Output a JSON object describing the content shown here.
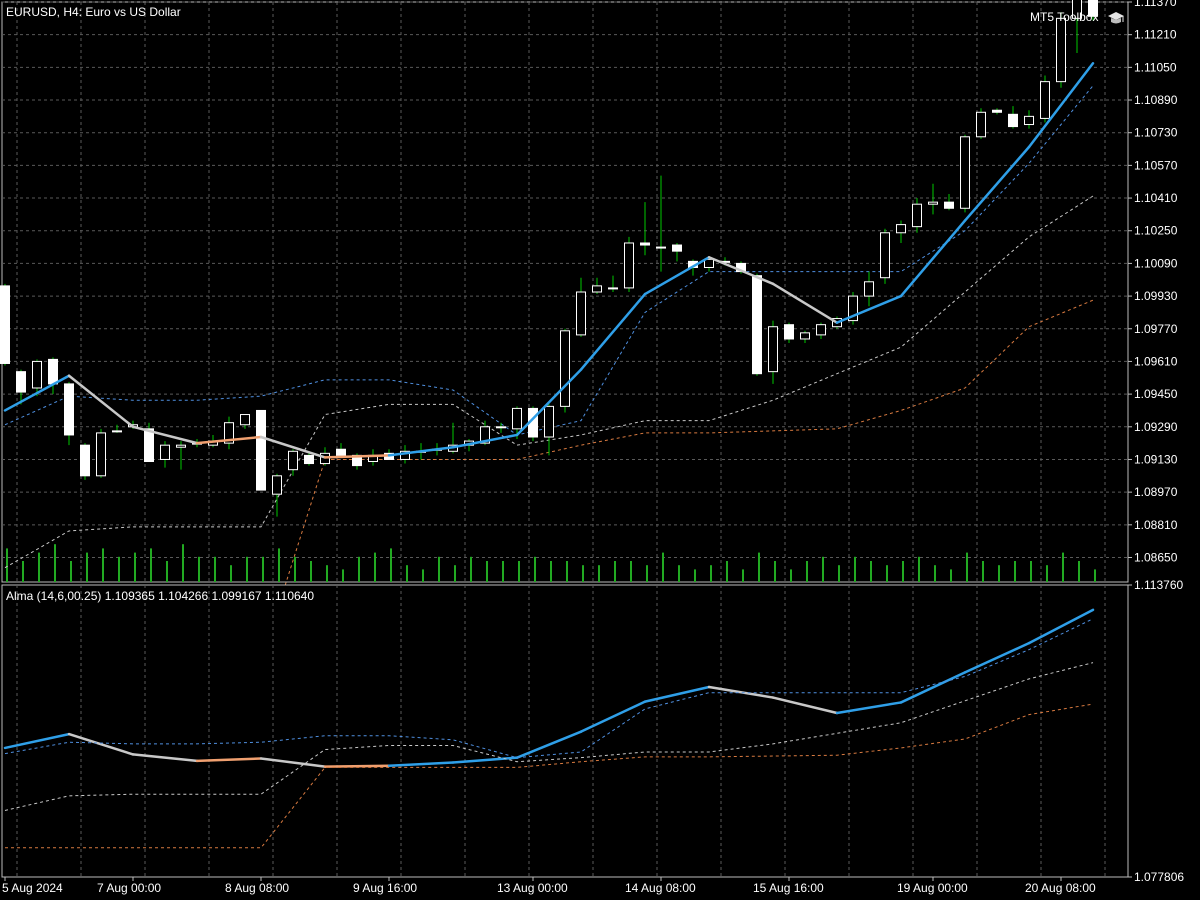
{
  "header": {
    "symbol_label": "EURUSD, H4:  Euro vs US Dollar",
    "toolbox_label": "MT5 Toolbox",
    "indicator_label": "Alma (14,6,00.25) 1.109365 1.104266 1.099167 1.110640"
  },
  "icons": {
    "toolbox": "graduation-cap-icon"
  },
  "colors": {
    "background": "#000000",
    "grid": "#5a5a5a",
    "candle_up_body": "#000000",
    "candle_down_body": "#ffffff",
    "candle_outline": "#ffffff",
    "wick": "#00c800",
    "volume": "#22aa22",
    "alma_up": "#2f9fe8",
    "alma_down": "#c8c8c8",
    "alma_flat": "#f0a070",
    "band_blue": "#4f8fdf",
    "band_white": "#c8c8c8",
    "band_orange": "#d87a40"
  },
  "chart_data": [
    {
      "type": "candlestick",
      "title": "EURUSD, H4:  Euro vs US Dollar",
      "ylim": [
        1.0853,
        1.1137
      ],
      "y_ticks": [
        "1.11370",
        "1.11210",
        "1.11050",
        "1.10890",
        "1.10730",
        "1.10570",
        "1.10410",
        "1.10250",
        "1.10090",
        "1.09930",
        "1.09770",
        "1.09610",
        "1.09450",
        "1.09290",
        "1.09130",
        "1.08970",
        "1.08810",
        "1.08650"
      ],
      "x_ticks": [
        "5 Aug 2024",
        "7 Aug 00:00",
        "8 Aug 08:00",
        "9 Aug 16:00",
        "13 Aug 00:00",
        "14 Aug 08:00",
        "15 Aug 16:00",
        "19 Aug 00:00",
        "20 Aug 08:00"
      ],
      "x_tick_bar_index": [
        0,
        8,
        16,
        24,
        33,
        41,
        49,
        58,
        66
      ],
      "candles": [
        [
          1.0998,
          1.0999,
          1.0959,
          1.096
        ],
        [
          1.0956,
          1.0957,
          1.094,
          1.0946
        ],
        [
          1.0948,
          1.0962,
          1.0944,
          1.0961
        ],
        [
          1.0962,
          1.0963,
          1.0945,
          1.095
        ],
        [
          1.095,
          1.0951,
          1.092,
          1.0925
        ],
        [
          1.092,
          1.0921,
          1.0903,
          1.0905
        ],
        [
          1.0905,
          1.0928,
          1.0904,
          1.0926
        ],
        [
          1.0927,
          1.093,
          1.0926,
          1.0927
        ],
        [
          1.0929,
          1.0932,
          1.0928,
          1.093
        ],
        [
          1.0928,
          1.0931,
          1.0912,
          1.0912
        ],
        [
          1.0913,
          1.0922,
          1.0909,
          1.092
        ],
        [
          1.0919,
          1.0922,
          1.0908,
          1.092
        ],
        [
          1.0921,
          1.0923,
          1.0919,
          1.0921
        ],
        [
          1.092,
          1.0925,
          1.0919,
          1.0922
        ],
        [
          1.0921,
          1.0934,
          1.0918,
          1.0931
        ],
        [
          1.093,
          1.0935,
          1.0928,
          1.0935
        ],
        [
          1.0937,
          1.0937,
          1.0898,
          1.0898
        ],
        [
          1.0896,
          1.0906,
          1.0885,
          1.0905
        ],
        [
          1.0908,
          1.0918,
          1.0905,
          1.0917
        ],
        [
          1.0915,
          1.0916,
          1.091,
          1.0911
        ],
        [
          1.0911,
          1.0919,
          1.091,
          1.0916
        ],
        [
          1.0918,
          1.0921,
          1.0915,
          1.0915
        ],
        [
          1.0915,
          1.0916,
          1.0908,
          1.091
        ],
        [
          1.0912,
          1.0918,
          1.091,
          1.0915
        ],
        [
          1.0916,
          1.0918,
          1.0913,
          1.0913
        ],
        [
          1.0913,
          1.092,
          1.0911,
          1.0917
        ],
        [
          1.0917,
          1.0921,
          1.0913,
          1.0917
        ],
        [
          1.0918,
          1.0921,
          1.0915,
          1.0918
        ],
        [
          1.0917,
          1.0931,
          1.0916,
          1.092
        ],
        [
          1.092,
          1.0923,
          1.0917,
          1.0922
        ],
        [
          1.0921,
          1.0932,
          1.092,
          1.0929
        ],
        [
          1.0929,
          1.0931,
          1.0926,
          1.0929
        ],
        [
          1.0928,
          1.0939,
          1.0923,
          1.0938
        ],
        [
          1.0938,
          1.0939,
          1.0922,
          1.0924
        ],
        [
          1.0924,
          1.094,
          1.0915,
          1.0939
        ],
        [
          1.0939,
          1.0977,
          1.0936,
          1.0976
        ],
        [
          1.0974,
          1.1002,
          1.0973,
          1.0995
        ],
        [
          1.0995,
          1.1002,
          1.0994,
          1.0998
        ],
        [
          1.0997,
          1.1003,
          1.0995,
          1.0997
        ],
        [
          1.0997,
          1.1022,
          1.0995,
          1.1019
        ],
        [
          1.1019,
          1.1039,
          1.1013,
          1.1018
        ],
        [
          1.1017,
          1.1052,
          1.1005,
          1.1017
        ],
        [
          1.1018,
          1.1019,
          1.101,
          1.1015
        ],
        [
          1.101,
          1.1011,
          1.1003,
          1.1007
        ],
        [
          1.1007,
          1.1012,
          1.1005,
          1.1011
        ],
        [
          1.101,
          1.1012,
          1.1008,
          1.101
        ],
        [
          1.1009,
          1.101,
          1.1004,
          1.1005
        ],
        [
          1.1003,
          1.1004,
          1.0954,
          1.0955
        ],
        [
          1.0956,
          1.0981,
          1.095,
          1.0978
        ],
        [
          1.0979,
          1.098,
          1.097,
          1.0972
        ],
        [
          1.0972,
          1.0976,
          1.097,
          1.0975
        ],
        [
          1.0974,
          1.098,
          1.0972,
          1.0979
        ],
        [
          1.0978,
          1.0983,
          1.0977,
          1.0982
        ],
        [
          1.0981,
          1.0995,
          1.0979,
          1.0993
        ],
        [
          1.0993,
          1.1005,
          1.0988,
          1.1
        ],
        [
          1.1002,
          1.1026,
          1.0999,
          1.1024
        ],
        [
          1.1024,
          1.103,
          1.1019,
          1.1028
        ],
        [
          1.1027,
          1.1041,
          1.1024,
          1.1038
        ],
        [
          1.1038,
          1.1048,
          1.1033,
          1.1039
        ],
        [
          1.1039,
          1.1043,
          1.1035,
          1.1036
        ],
        [
          1.1036,
          1.1072,
          1.1034,
          1.1071
        ],
        [
          1.1071,
          1.1085,
          1.107,
          1.1083
        ],
        [
          1.1084,
          1.1085,
          1.1082,
          1.1083
        ],
        [
          1.1082,
          1.1086,
          1.1075,
          1.1076
        ],
        [
          1.1077,
          1.1084,
          1.1075,
          1.1081
        ],
        [
          1.108,
          1.1101,
          1.1078,
          1.1098
        ],
        [
          1.1098,
          1.1132,
          1.1095,
          1.1129
        ],
        [
          1.1129,
          1.114,
          1.1112,
          1.1139
        ],
        [
          1.1139,
          1.1141,
          1.1128,
          1.113
        ]
      ],
      "volume_relative": [
        0.8,
        0.5,
        0.7,
        0.9,
        0.5,
        0.7,
        0.8,
        0.6,
        0.7,
        0.8,
        0.5,
        0.9,
        0.6,
        0.6,
        0.4,
        0.6,
        0.6,
        0.8,
        0.6,
        0.5,
        0.4,
        0.3,
        0.6,
        0.7,
        0.8,
        0.4,
        0.3,
        0.6,
        0.4,
        0.6,
        0.5,
        0.5,
        0.5,
        0.6,
        0.5,
        0.5,
        0.4,
        0.4,
        0.5,
        0.5,
        0.4,
        0.7,
        0.4,
        0.3,
        0.4,
        0.5,
        0.3,
        0.7,
        0.5,
        0.3,
        0.5,
        0.6,
        0.4,
        0.6,
        0.5,
        0.4,
        0.5,
        0.6,
        0.4,
        0.3,
        0.7,
        0.5,
        0.4,
        0.5,
        0.5,
        0.4,
        0.7,
        0.5,
        0.3
      ]
    },
    {
      "type": "line",
      "title": "Alma (14,6,00.25) 1.109365 1.104266 1.099167 1.110640",
      "ylim": [
        1.077806,
        1.11376
      ],
      "y_ticks": [
        "1.113760",
        "1.077806"
      ],
      "series": [
        {
          "name": "",
          "role": "alma",
          "style": "solid",
          "x": [
            0,
            4,
            8,
            12,
            16,
            20,
            24,
            28,
            32,
            36,
            40,
            44,
            48,
            52,
            56,
            60,
            64,
            68
          ],
          "values": [
            1.0937,
            1.0954,
            1.0929,
            1.0921,
            1.0924,
            1.0914,
            1.0915,
            1.0919,
            1.0925,
            1.0957,
            1.0994,
            1.1012,
            1.0999,
            1.098,
            1.0993,
            1.103,
            1.1066,
            1.1107
          ],
          "color_by_trend": {
            "up": "#2f9fe8",
            "down": "#c8c8c8",
            "flat": "#f0a070"
          }
        },
        {
          "name": "",
          "role": "band-blue",
          "style": "dashed",
          "x": [
            0,
            4,
            8,
            12,
            16,
            20,
            24,
            28,
            32,
            36,
            40,
            44,
            48,
            52,
            56,
            60,
            64,
            68
          ],
          "values": [
            1.093,
            1.0944,
            1.0942,
            1.0942,
            1.0944,
            1.0952,
            1.0952,
            1.0947,
            1.0925,
            1.0932,
            1.0985,
            1.1005,
            1.1005,
            1.1005,
            1.1005,
            1.1025,
            1.1058,
            1.1096
          ],
          "color": "#4f8fdf"
        },
        {
          "name": "",
          "role": "band-white",
          "style": "dashed",
          "x": [
            0,
            4,
            8,
            12,
            16,
            20,
            24,
            28,
            32,
            36,
            40,
            44,
            48,
            52,
            56,
            60,
            64,
            68
          ],
          "values": [
            1.086,
            1.0878,
            1.088,
            1.088,
            1.088,
            1.0935,
            1.094,
            1.094,
            1.092,
            1.0925,
            1.0932,
            1.0932,
            1.0942,
            1.0955,
            1.0968,
            1.0995,
            1.1022,
            1.1042
          ],
          "color": "#c8c8c8"
        },
        {
          "name": "",
          "role": "band-orange",
          "style": "dashed",
          "x": [
            0,
            4,
            8,
            12,
            16,
            20,
            24,
            28,
            32,
            36,
            40,
            44,
            48,
            52,
            56,
            60,
            64,
            68
          ],
          "values": [
            1.0814,
            1.0814,
            1.0814,
            1.0814,
            1.0814,
            1.0913,
            1.0913,
            1.0913,
            1.0913,
            1.092,
            1.0926,
            1.0926,
            1.0927,
            1.0928,
            1.0937,
            1.0948,
            1.0978,
            1.0991
          ],
          "color": "#d87a40"
        }
      ]
    }
  ]
}
